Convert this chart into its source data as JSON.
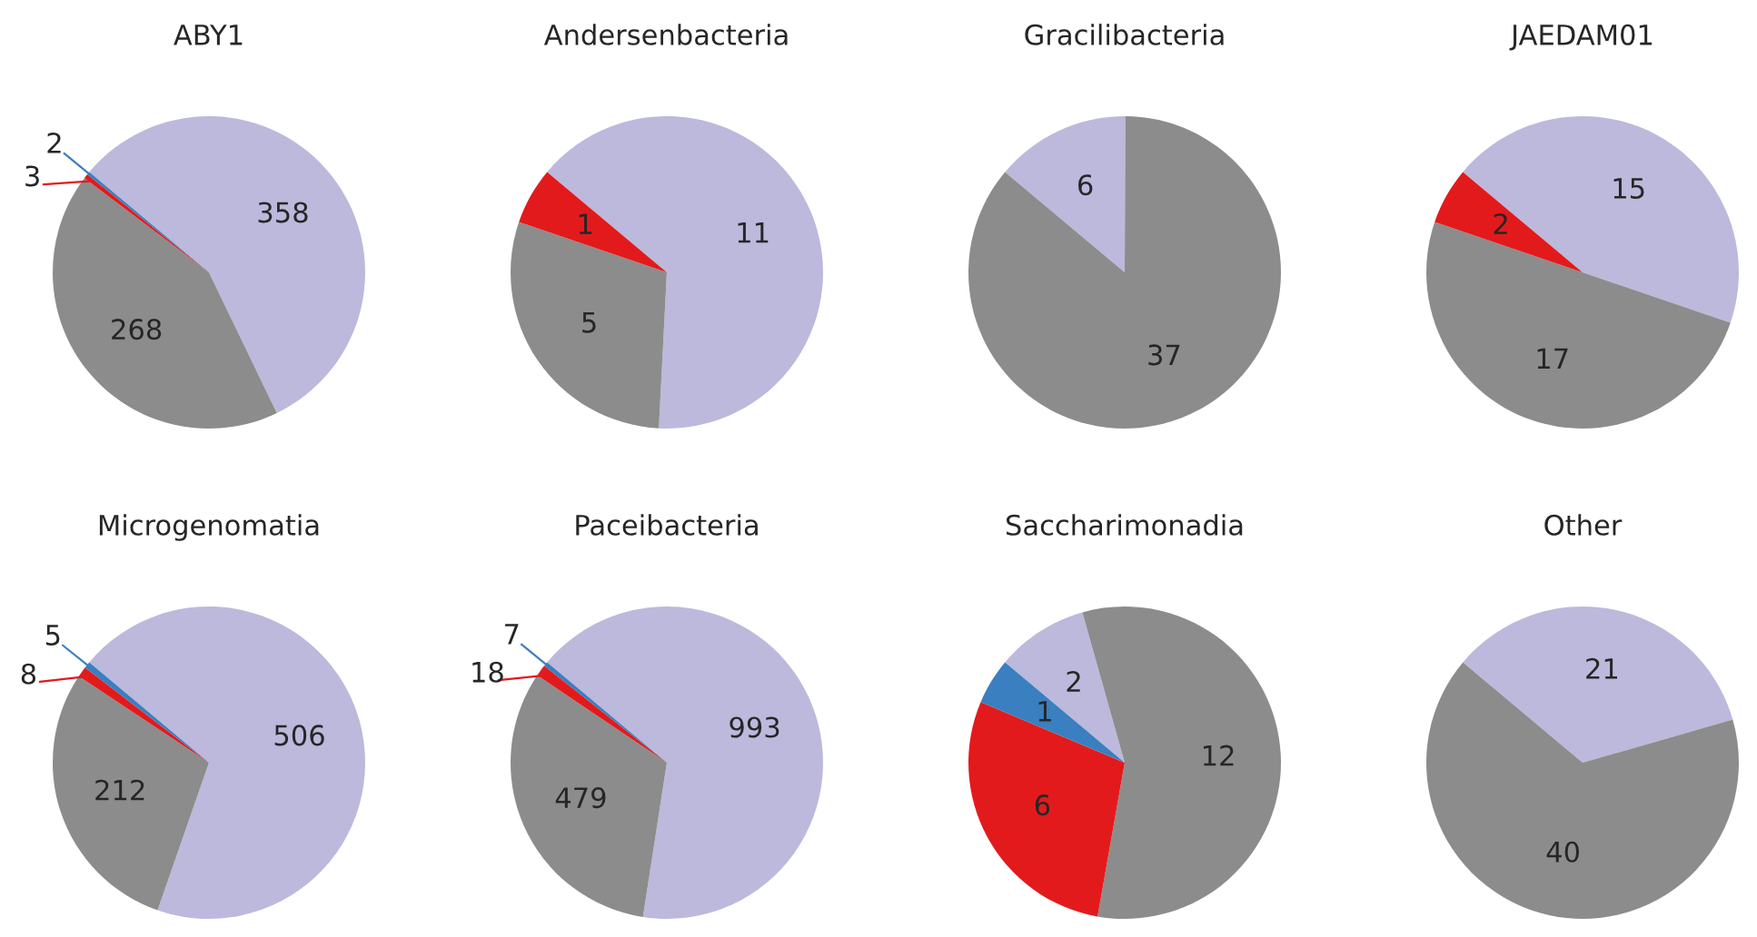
{
  "chart_data": [
    {
      "type": "pie",
      "title": "ABY1",
      "categories": [
        null,
        null,
        null,
        null
      ],
      "values": [
        358,
        268,
        3,
        2
      ],
      "colors": [
        "#bcb9dc",
        "#8c8c8c",
        "#e31a1c",
        "#3a7fbf"
      ],
      "data_labels": true
    },
    {
      "type": "pie",
      "title": "Andersenbacteria",
      "categories": [
        null,
        null,
        null
      ],
      "values": [
        11,
        5,
        1
      ],
      "colors": [
        "#bcb9dc",
        "#8c8c8c",
        "#e31a1c"
      ],
      "data_labels": true
    },
    {
      "type": "pie",
      "title": "Gracilibacteria",
      "categories": [
        null,
        null
      ],
      "values": [
        6,
        37
      ],
      "colors": [
        "#bcb9dc",
        "#8c8c8c"
      ],
      "data_labels": true
    },
    {
      "type": "pie",
      "title": "JAEDAM01",
      "categories": [
        null,
        null,
        null
      ],
      "values": [
        15,
        17,
        2
      ],
      "colors": [
        "#bcb9dc",
        "#8c8c8c",
        "#e31a1c"
      ],
      "data_labels": true
    },
    {
      "type": "pie",
      "title": "Microgenomatia",
      "categories": [
        null,
        null,
        null,
        null
      ],
      "values": [
        506,
        212,
        8,
        5
      ],
      "colors": [
        "#bcb9dc",
        "#8c8c8c",
        "#e31a1c",
        "#3a7fbf"
      ],
      "data_labels": true
    },
    {
      "type": "pie",
      "title": "Paceibacteria",
      "categories": [
        null,
        null,
        null,
        null
      ],
      "values": [
        993,
        479,
        18,
        7
      ],
      "colors": [
        "#bcb9dc",
        "#8c8c8c",
        "#e31a1c",
        "#3a7fbf"
      ],
      "data_labels": true
    },
    {
      "type": "pie",
      "title": "Saccharimonadia",
      "categories": [
        null,
        null,
        null,
        null
      ],
      "values": [
        2,
        12,
        6,
        1
      ],
      "colors": [
        "#bcb9dc",
        "#8c8c8c",
        "#e31a1c",
        "#3a7fbf"
      ],
      "data_labels": true
    },
    {
      "type": "pie",
      "title": "Other",
      "categories": [
        null,
        null
      ],
      "values": [
        21,
        40
      ],
      "colors": [
        "#bcb9dc",
        "#8c8c8c"
      ],
      "data_labels": true
    }
  ]
}
